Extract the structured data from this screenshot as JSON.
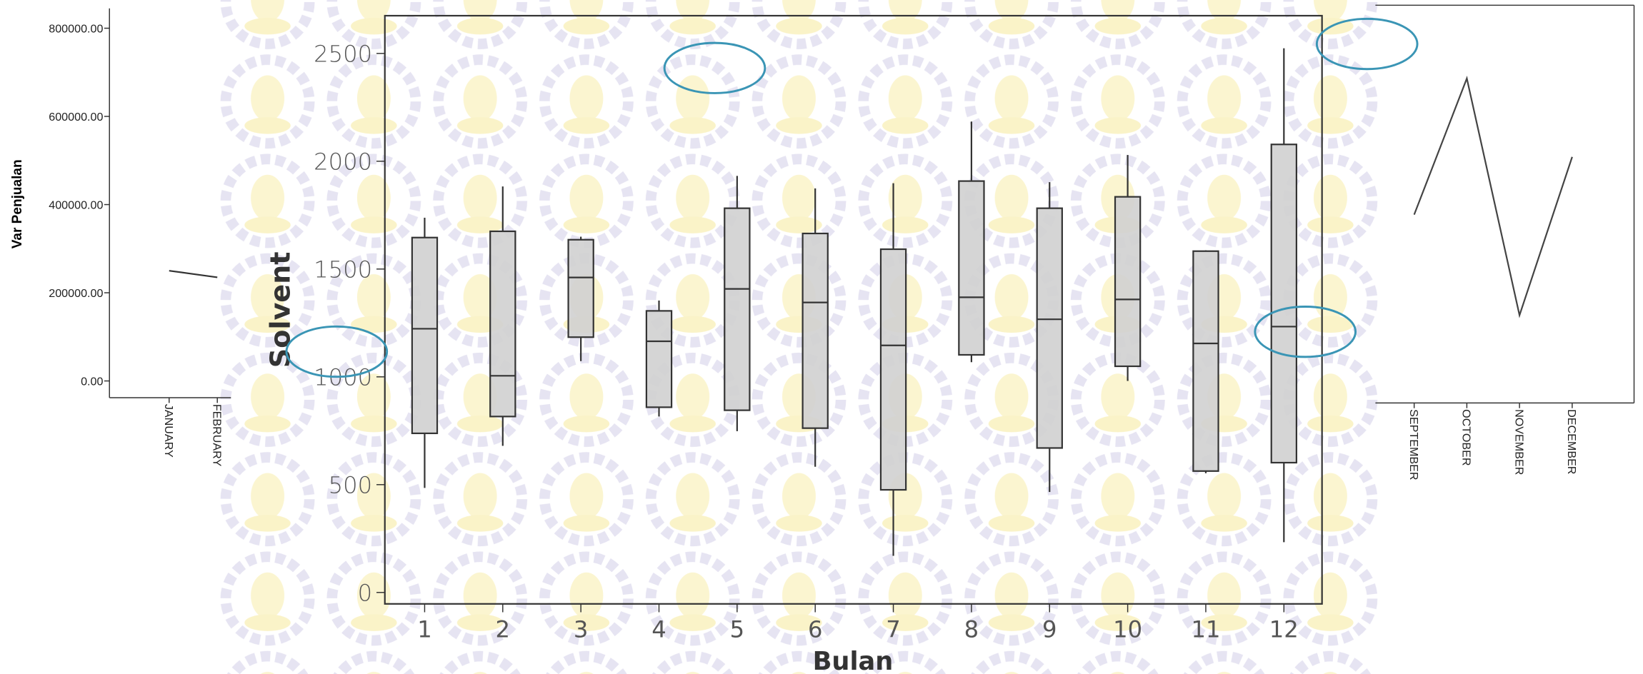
{
  "chart_data": [
    {
      "type": "line",
      "y_axis_label": "Var Penjualan",
      "color": "#333333",
      "ylim": [
        -38000,
        845000
      ],
      "yticks": [
        {
          "value": 0,
          "label": "0.00"
        },
        {
          "value": 200000,
          "label": "200000.00"
        },
        {
          "value": 400000,
          "label": "400000.00"
        },
        {
          "value": 600000,
          "label": "600000.00"
        },
        {
          "value": 800000,
          "label": "800000.00"
        }
      ],
      "categories": [
        "JANUARY",
        "FEBRUARY"
      ],
      "values": [
        250000,
        235000
      ]
    },
    {
      "type": "box",
      "x_axis_label": "Bulan",
      "y_axis_label": "Solvent",
      "color": "#d0d0d0",
      "ylim": [
        -53,
        2675
      ],
      "yticks": [
        0,
        500,
        1000,
        1500,
        2000,
        2500
      ],
      "categories": [
        "1",
        "2",
        "3",
        "4",
        "5",
        "6",
        "7",
        "8",
        "9",
        "10",
        "11",
        "12"
      ],
      "boxes": [
        {
          "min": 485,
          "q1": 738,
          "median": 1223,
          "q3": 1646,
          "max": 1738
        },
        {
          "min": 680,
          "q1": 816,
          "median": 1005,
          "q3": 1675,
          "max": 1883
        },
        {
          "min": 1073,
          "q1": 1184,
          "median": 1461,
          "q3": 1636,
          "max": 1650
        },
        {
          "min": 816,
          "q1": 859,
          "median": 1165,
          "q3": 1306,
          "max": 1354
        },
        {
          "min": 748,
          "q1": 845,
          "median": 1408,
          "q3": 1782,
          "max": 1932
        },
        {
          "min": 583,
          "q1": 762,
          "median": 1345,
          "q3": 1665,
          "max": 1874
        },
        {
          "min": 170,
          "q1": 476,
          "median": 1146,
          "q3": 1592,
          "max": 1898
        },
        {
          "min": 1068,
          "q1": 1102,
          "median": 1369,
          "q3": 1908,
          "max": 2184
        },
        {
          "min": 466,
          "q1": 670,
          "median": 1267,
          "q3": 1782,
          "max": 1903
        },
        {
          "min": 981,
          "q1": 1049,
          "median": 1359,
          "q3": 1835,
          "max": 2029
        },
        {
          "min": 553,
          "q1": 563,
          "median": 1155,
          "q3": 1583,
          "max": 1587
        },
        {
          "min": 233,
          "q1": 602,
          "median": 1233,
          "q3": 2078,
          "max": 2524
        }
      ]
    },
    {
      "type": "line",
      "color": "#444444",
      "ylim": [
        -38000,
        864000
      ],
      "categories": [
        "SEPTEMBER",
        "OCTOBER",
        "NOVEMBER",
        "DECEMBER"
      ],
      "values": [
        389000,
        698000,
        161000,
        520000
      ]
    }
  ]
}
